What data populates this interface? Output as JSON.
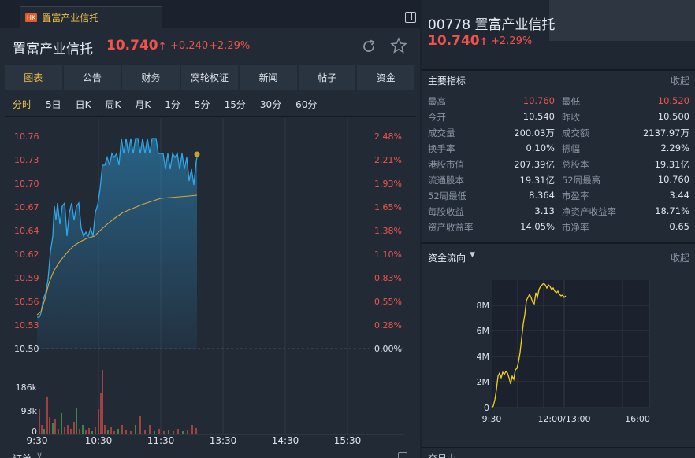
{
  "tab": {
    "badge": "HK",
    "name": "置富产业信托"
  },
  "header": {
    "name": "置富产业信托",
    "price": "10.740",
    "change": "+0.240",
    "change_pct": "+2.29%"
  },
  "nav_tabs": [
    "图表",
    "公告",
    "财务",
    "窝轮权证",
    "新闻",
    "帖子",
    "资金"
  ],
  "periods": [
    "分时",
    "5日",
    "日K",
    "周K",
    "月K",
    "1分",
    "5分",
    "15分",
    "30分",
    "60分"
  ],
  "chart": {
    "price_ticks": [
      "10.76",
      "10.73",
      "10.70",
      "10.67",
      "10.64",
      "10.62",
      "10.59",
      "10.56",
      "10.53",
      "10.50"
    ],
    "pct_ticks": [
      "2.48%",
      "2.21%",
      "1.93%",
      "1.65%",
      "1.38%",
      "1.10%",
      "0.83%",
      "0.55%",
      "0.28%",
      "0.00%"
    ],
    "volume_ticks": [
      "186k",
      "93k",
      "0"
    ],
    "time_ticks": [
      "9:30",
      "10:30",
      "11:30",
      "13:30",
      "14:30",
      "15:30"
    ],
    "footer_left": "订单"
  },
  "right": {
    "code_name": "00778 置富产业信托",
    "price": "10.740",
    "change_pct": "+2.29%",
    "indicators_title": "主要指标",
    "collapse_label": "收起",
    "indicators": [
      {
        "l1": "最高",
        "v1": "10.760",
        "l2": "最低",
        "v2": "10.520"
      },
      {
        "l1": "今开",
        "v1": "10.540",
        "l2": "昨收",
        "v2": "10.500"
      },
      {
        "l1": "成交量",
        "v1": "200.03万",
        "l2": "成交额",
        "v2": "2137.97万"
      },
      {
        "l1": "换手率",
        "v1": "0.10%",
        "l2": "振幅",
        "v2": "2.29%"
      },
      {
        "l1": "港股市值",
        "v1": "207.39亿",
        "l2": "总股本",
        "v2": "19.31亿"
      },
      {
        "l1": "流通股本",
        "v1": "19.31亿",
        "l2": "52周最高",
        "v2": "10.760"
      },
      {
        "l1": "52周最低",
        "v1": "8.364",
        "l2": "市盈率",
        "v2": "3.44"
      },
      {
        "l1": "每股收益",
        "v1": "3.13",
        "l2": "净资产收益率",
        "v2": "18.71%"
      },
      {
        "l1": "资产收益率",
        "v1": "14.05%",
        "l2": "市净率",
        "v2": "0.65"
      }
    ],
    "flow_title": "资金流向",
    "flow_y_ticks": [
      "8M",
      "6M",
      "4M",
      "2M",
      "0"
    ],
    "flow_x_ticks": [
      "9:30",
      "12:00/13:00",
      "16:00"
    ],
    "footer_left": "交易中"
  },
  "colors": {
    "up": "#f0534b",
    "accent": "#f0c14b",
    "price_line": "#2fa6e6",
    "avg_line": "#d9a63a"
  }
}
